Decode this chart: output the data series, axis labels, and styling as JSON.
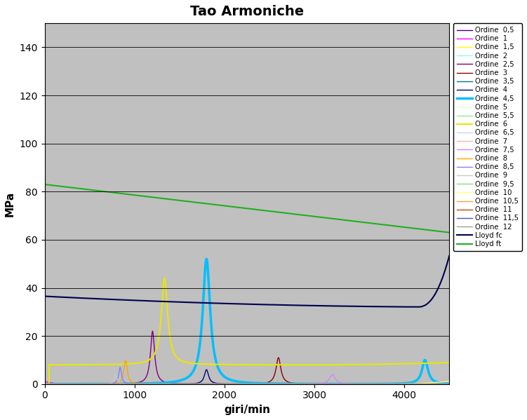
{
  "title": "Tao Armoniche",
  "xlabel": "giri/min",
  "ylabel": "MPa",
  "xlim": [
    0,
    4500
  ],
  "ylim": [
    0,
    150
  ],
  "yticks": [
    0,
    20,
    40,
    60,
    80,
    100,
    120,
    140
  ],
  "xticks": [
    0,
    1000,
    2000,
    3000,
    4000
  ],
  "bg_color": "#c0c0c0",
  "fig_bg": "#ffffff",
  "legend_entries": [
    {
      "label": "Ordine  0,5",
      "color": "#4b0082",
      "lw": 1.0
    },
    {
      "label": "Ordine  1",
      "color": "#ff00ff",
      "lw": 1.0
    },
    {
      "label": "Ordine  1,5",
      "color": "#ffff00",
      "lw": 1.0
    },
    {
      "label": "Ordine  2",
      "color": "#80ffff",
      "lw": 1.0
    },
    {
      "label": "Ordine  2,5",
      "color": "#800080",
      "lw": 1.0
    },
    {
      "label": "Ordine  3",
      "color": "#8b0000",
      "lw": 1.0
    },
    {
      "label": "Ordine  3,5",
      "color": "#008080",
      "lw": 1.0
    },
    {
      "label": "Ordine  4",
      "color": "#000080",
      "lw": 1.0
    },
    {
      "label": "Ordine  4,5",
      "color": "#00bfff",
      "lw": 2.5
    },
    {
      "label": "Ordine  5",
      "color": "#e0ffe0",
      "lw": 1.0
    },
    {
      "label": "Ordine  5,5",
      "color": "#90ee90",
      "lw": 1.0
    },
    {
      "label": "Ordine  6",
      "color": "#e8e800",
      "lw": 1.5
    },
    {
      "label": "Ordine  6,5",
      "color": "#d0d0ff",
      "lw": 1.0
    },
    {
      "label": "Ordine  7",
      "color": "#ffb0b0",
      "lw": 1.0
    },
    {
      "label": "Ordine  7,5",
      "color": "#cc88ff",
      "lw": 1.0
    },
    {
      "label": "Ordine  8",
      "color": "#ffa500",
      "lw": 1.0
    },
    {
      "label": "Ordine  8,5",
      "color": "#8080ff",
      "lw": 1.0
    },
    {
      "label": "Ordine  9",
      "color": "#c8c8c8",
      "lw": 1.0
    },
    {
      "label": "Ordine  9,5",
      "color": "#a0d080",
      "lw": 1.0
    },
    {
      "label": "Ordine  10",
      "color": "#ffff80",
      "lw": 1.0
    },
    {
      "label": "Ordine  10,5",
      "color": "#ffa040",
      "lw": 1.0
    },
    {
      "label": "Ordine  11",
      "color": "#cc4400",
      "lw": 1.0
    },
    {
      "label": "Ordine  11,5",
      "color": "#5050c0",
      "lw": 1.0
    },
    {
      "label": "Ordine  12",
      "color": "#a0a0a0",
      "lw": 1.0
    },
    {
      "label": "Lloyd fc",
      "color": "#000050",
      "lw": 1.5
    },
    {
      "label": "Lloyd ft",
      "color": "#20b020",
      "lw": 1.5
    }
  ]
}
